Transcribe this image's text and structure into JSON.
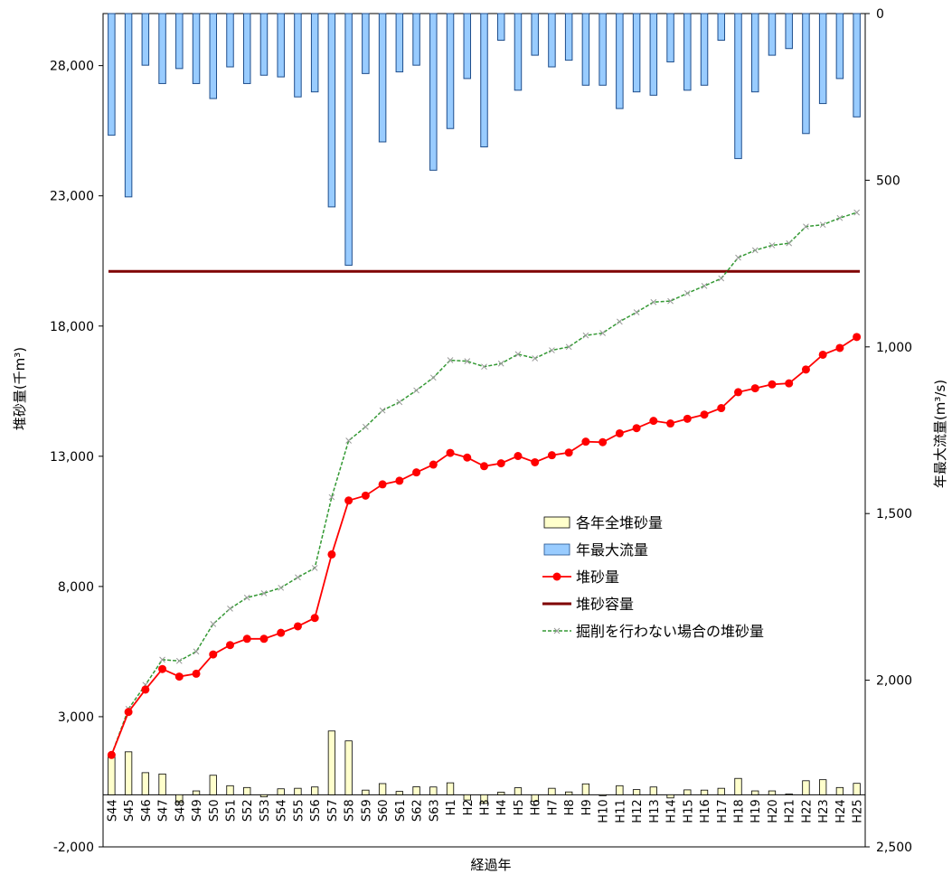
{
  "chart_data": {
    "type": "bar+line",
    "categories": [
      "S44",
      "S45",
      "S46",
      "S47",
      "S48",
      "S49",
      "S50",
      "S51",
      "S52",
      "S53",
      "S54",
      "S55",
      "S56",
      "S57",
      "S58",
      "S59",
      "S60",
      "S61",
      "S62",
      "S63",
      "H1",
      "H2",
      "H3",
      "H4",
      "H5",
      "H6",
      "H7",
      "H8",
      "H9",
      "H10",
      "H11",
      "H12",
      "H13",
      "H14",
      "H15",
      "H16",
      "H17",
      "H18",
      "H19",
      "H20",
      "H21",
      "H22",
      "H23",
      "H24",
      "H25"
    ],
    "xlabel": "経過年",
    "ylabel_left": "堆砂量(千m³)",
    "ylabel_right": "年最大流量(m³/s)",
    "ylim_left": [
      -2000,
      30000
    ],
    "yticks_left": [
      "28,000",
      "23,000",
      "18,000",
      "13,000",
      "8,000",
      "3,000",
      "-2,000"
    ],
    "ytick_values_left": [
      28000,
      23000,
      18000,
      13000,
      8000,
      3000,
      -2000
    ],
    "ylim_right": [
      0,
      2500
    ],
    "yticks_right": [
      "0",
      "500",
      "1,000",
      "1,500",
      "2,000",
      "2,500"
    ],
    "ytick_values_right": [
      0,
      500,
      1000,
      1500,
      2000,
      2500
    ],
    "legend_position": "center-right",
    "series": [
      {
        "name": "各年全堆砂量",
        "type": "bar",
        "axis": "left",
        "color": "#ffffcc",
        "values": [
          1530,
          1650,
          850,
          800,
          -300,
          150,
          750,
          350,
          280,
          -80,
          230,
          250,
          300,
          2450,
          2070,
          180,
          430,
          130,
          310,
          300,
          460,
          -200,
          -330,
          100,
          270,
          -250,
          250,
          110,
          420,
          -30,
          350,
          200,
          300,
          -120,
          190,
          180,
          250,
          630,
          150,
          150,
          30,
          540,
          580,
          280,
          440
        ]
      },
      {
        "name": "年最大流量",
        "type": "bar",
        "axis": "right",
        "color": "#99ccff",
        "values": [
          365,
          550,
          155,
          210,
          165,
          210,
          255,
          160,
          210,
          185,
          190,
          250,
          235,
          580,
          755,
          180,
          385,
          175,
          155,
          470,
          345,
          195,
          400,
          80,
          230,
          125,
          160,
          140,
          215,
          215,
          285,
          235,
          245,
          145,
          230,
          215,
          80,
          435,
          235,
          125,
          105,
          360,
          270,
          195,
          310
        ]
      },
      {
        "name": "堆砂量",
        "type": "line",
        "axis": "left",
        "color": "#ff0000",
        "values": [
          1530,
          3180,
          4040,
          4830,
          4540,
          4650,
          5390,
          5750,
          5990,
          5990,
          6220,
          6470,
          6790,
          9230,
          11300,
          11490,
          11920,
          12060,
          12380,
          12680,
          13130,
          12950,
          12620,
          12730,
          13010,
          12770,
          13040,
          13140,
          13560,
          13540,
          13880,
          14080,
          14360,
          14260,
          14440,
          14600,
          14850,
          15460,
          15610,
          15760,
          15800,
          16330,
          16900,
          17160,
          17580
        ]
      },
      {
        "name": "堆砂容量",
        "type": "line",
        "axis": "left",
        "color": "#7f0000",
        "values": [
          20100,
          20100,
          20100,
          20100,
          20100,
          20100,
          20100,
          20100,
          20100,
          20100,
          20100,
          20100,
          20100,
          20100,
          20100,
          20100,
          20100,
          20100,
          20100,
          20100,
          20100,
          20100,
          20100,
          20100,
          20100,
          20100,
          20100,
          20100,
          20100,
          20100,
          20100,
          20100,
          20100,
          20100,
          20100,
          20100,
          20100,
          20100,
          20100,
          20100,
          20100,
          20100,
          20100,
          20100,
          20100
        ]
      },
      {
        "name": "掘削を行わない場合の堆砂量",
        "type": "line",
        "axis": "left",
        "color": "#339933",
        "values": [
          1530,
          3300,
          4220,
          5190,
          5140,
          5500,
          6560,
          7150,
          7570,
          7740,
          7950,
          8350,
          8710,
          11430,
          13600,
          14130,
          14760,
          15080,
          15530,
          16020,
          16690,
          16650,
          16440,
          16560,
          16920,
          16760,
          17070,
          17200,
          17640,
          17730,
          18170,
          18530,
          18920,
          18960,
          19260,
          19540,
          19830,
          20630,
          20910,
          21100,
          21180,
          21820,
          21890,
          22150,
          22360
        ]
      }
    ]
  }
}
